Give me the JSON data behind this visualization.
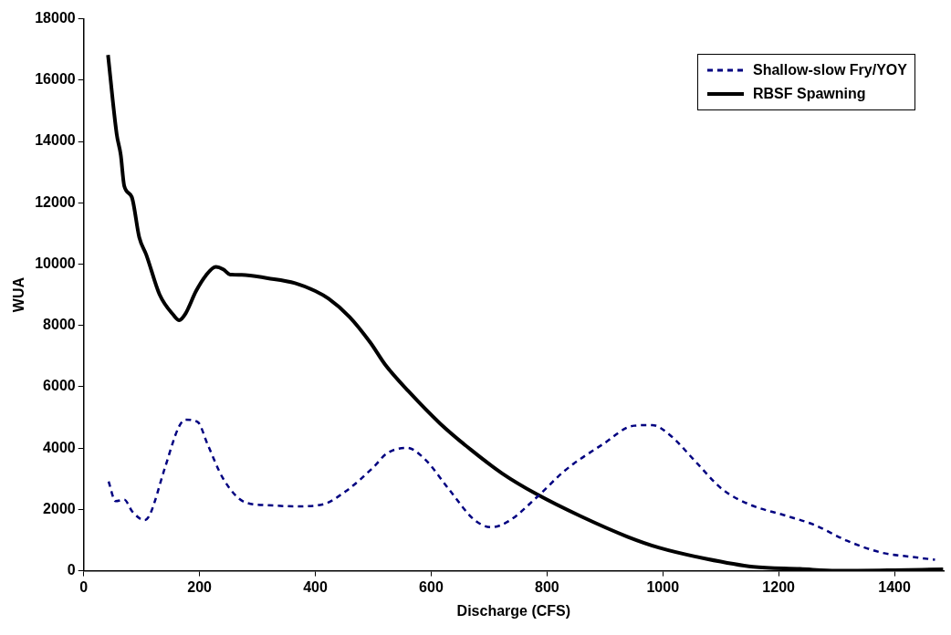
{
  "chart_data": {
    "type": "line",
    "xlabel": "Discharge (CFS)",
    "ylabel": "WUA",
    "xlim": [
      0,
      1485
    ],
    "xticks": [
      0,
      200,
      400,
      600,
      800,
      1000,
      1200,
      1400
    ],
    "ylim": [
      0,
      18000
    ],
    "yticks": [
      0,
      2000,
      4000,
      6000,
      8000,
      10000,
      12000,
      14000,
      16000,
      18000
    ],
    "grid": false,
    "legend": "top right",
    "marker": "none",
    "series": [
      {
        "name": "Shallow-slow Fry/YOY",
        "color": "#000080",
        "line_style": "dashed",
        "x": [
          43,
          55,
          70,
          84,
          105,
          114,
          140,
          164,
          176,
          197,
          214,
          241,
          279,
          318,
          365,
          412,
          453,
          501,
          523,
          558,
          588,
          631,
          674,
          704,
          734,
          782,
          831,
          896,
          950,
          982,
          1012,
          1058,
          1102,
          1150,
          1210,
          1261,
          1318,
          1378,
          1435,
          1470
        ],
        "values": [
          2910,
          2270,
          2320,
          1930,
          1650,
          1820,
          3340,
          4680,
          4930,
          4850,
          4120,
          3000,
          2230,
          2140,
          2100,
          2160,
          2600,
          3390,
          3820,
          4010,
          3660,
          2650,
          1670,
          1420,
          1620,
          2390,
          3270,
          4120,
          4730,
          4750,
          4430,
          3530,
          2670,
          2160,
          1810,
          1500,
          980,
          590,
          440,
          360
        ]
      },
      {
        "name": "RBSF Spawning",
        "color": "#000000",
        "line_style": "solid",
        "x": [
          42,
          57,
          64,
          70,
          83,
          96,
          108,
          131,
          155,
          165,
          176,
          194,
          211,
          228,
          241,
          253,
          273,
          318,
          365,
          400,
          423,
          459,
          495,
          521,
          561,
          615,
          669,
          723,
          782,
          858,
          939,
          994,
          1075,
          1156,
          1237,
          1300,
          1400,
          1484
        ],
        "values": [
          16820,
          14240,
          13560,
          12550,
          12190,
          10870,
          10310,
          9010,
          8340,
          8170,
          8390,
          9120,
          9630,
          9910,
          9830,
          9660,
          9650,
          9540,
          9380,
          9120,
          8870,
          8280,
          7440,
          6710,
          5850,
          4810,
          3940,
          3170,
          2500,
          1780,
          1110,
          750,
          390,
          130,
          60,
          0,
          20,
          50
        ]
      }
    ]
  }
}
